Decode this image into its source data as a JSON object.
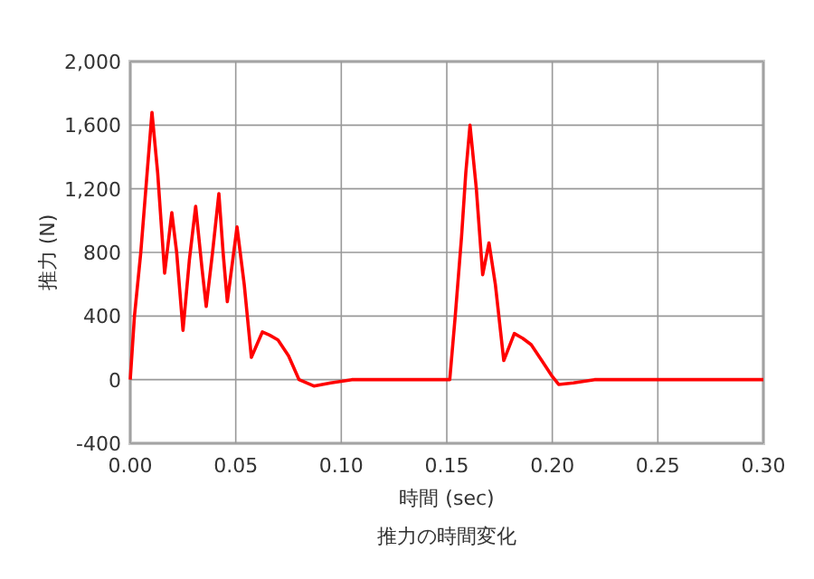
{
  "chart_data": {
    "type": "line",
    "title": "推力の時間変化",
    "xlabel": "時間 (sec)",
    "ylabel": "推力 (N)",
    "x": [
      0,
      0.002,
      0.005,
      0.008,
      0.0103,
      0.013,
      0.0163,
      0.0197,
      0.022,
      0.025,
      0.028,
      0.031,
      0.034,
      0.036,
      0.039,
      0.042,
      0.044,
      0.046,
      0.0506,
      0.054,
      0.0574,
      0.0626,
      0.066,
      0.07,
      0.075,
      0.08,
      0.087,
      0.095,
      0.1,
      0.105,
      0.12,
      0.15,
      0.1514,
      0.154,
      0.157,
      0.159,
      0.161,
      0.164,
      0.167,
      0.17,
      0.173,
      0.177,
      0.182,
      0.186,
      0.19,
      0.195,
      0.2,
      0.203,
      0.21,
      0.22,
      0.24,
      0.3
    ],
    "series": [
      {
        "color": "#ff0000",
        "values": [
          0,
          400,
          800,
          1300,
          1680,
          1300,
          670,
          1050,
          800,
          310,
          750,
          1090,
          700,
          460,
          800,
          1170,
          800,
          490,
          960,
          600,
          140,
          300,
          280,
          250,
          150,
          0,
          -40,
          -20,
          -10,
          0,
          0,
          0,
          0,
          400,
          900,
          1300,
          1600,
          1200,
          660,
          860,
          600,
          120,
          290,
          260,
          220,
          120,
          20,
          -30,
          -20,
          0,
          0,
          0
        ]
      }
    ],
    "xlim": [
      0,
      0.3
    ],
    "xticks": [
      {
        "value": 0,
        "label": "0.00"
      },
      {
        "value": 0.05,
        "label": "0.05"
      },
      {
        "value": 0.1,
        "label": "0.10"
      },
      {
        "value": 0.15,
        "label": "0.15"
      },
      {
        "value": 0.2,
        "label": "0.20"
      },
      {
        "value": 0.25,
        "label": "0.25"
      },
      {
        "value": 0.3,
        "label": "0.30"
      }
    ],
    "ylim": [
      -400,
      2000
    ],
    "yticks": [
      -400,
      0,
      400,
      {
        "value": 800,
        "label": "800"
      },
      {
        "value": 1200,
        "label": "1,200"
      },
      {
        "value": 1600,
        "label": "1,600"
      },
      {
        "value": 2000,
        "label": "2,000"
      }
    ],
    "grid": true,
    "marker": "none",
    "line_style": "solid"
  }
}
